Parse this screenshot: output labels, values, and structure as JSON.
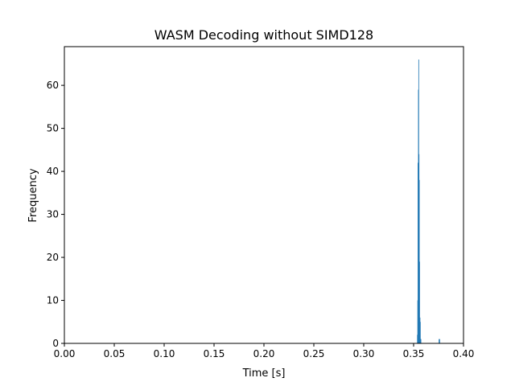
{
  "chart_data": {
    "type": "bar",
    "title": "WASM Decoding without SIMD128",
    "xlabel": "Time [s]",
    "ylabel": "Frequency",
    "xlim": [
      0.0,
      0.4
    ],
    "ylim": [
      0,
      69
    ],
    "xticks": [
      0.0,
      0.05,
      0.1,
      0.15,
      0.2,
      0.25,
      0.3,
      0.35,
      0.4
    ],
    "xtick_labels": [
      "0.00",
      "0.05",
      "0.10",
      "0.15",
      "0.20",
      "0.25",
      "0.30",
      "0.35",
      "0.40"
    ],
    "yticks": [
      0,
      10,
      20,
      30,
      40,
      50,
      60
    ],
    "ytick_labels": [
      "0",
      "10",
      "20",
      "30",
      "40",
      "50",
      "60"
    ],
    "grid": false,
    "bar_color": "#1f77b4",
    "series": [
      {
        "bin_width": 0.00032,
        "bins": [
          {
            "x": 0.3535,
            "y": 2
          },
          {
            "x": 0.3538,
            "y": 10
          },
          {
            "x": 0.3541,
            "y": 42
          },
          {
            "x": 0.3545,
            "y": 59
          },
          {
            "x": 0.3548,
            "y": 66
          },
          {
            "x": 0.3551,
            "y": 44
          },
          {
            "x": 0.3554,
            "y": 38
          },
          {
            "x": 0.3557,
            "y": 19
          },
          {
            "x": 0.3561,
            "y": 6
          },
          {
            "x": 0.3564,
            "y": 5
          },
          {
            "x": 0.3567,
            "y": 1
          },
          {
            "x": 0.357,
            "y": 1
          },
          {
            "x": 0.375,
            "y": 1
          },
          {
            "x": 0.376,
            "y": 1
          }
        ]
      }
    ]
  }
}
